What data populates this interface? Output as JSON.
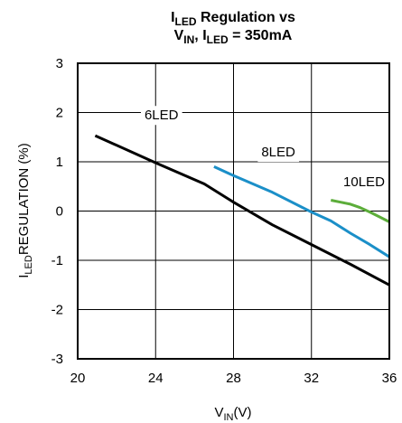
{
  "chart_data": {
    "type": "line",
    "title": {
      "line1": {
        "main": "I",
        "sub": "LED",
        "rest": " Regulation vs"
      },
      "line2": {
        "main1": "V",
        "sub1": "IN",
        "mid": ", I",
        "sub2": "LED",
        "rest": " = 350mA"
      }
    },
    "xlabel": {
      "main": "V",
      "sub": "IN",
      "rest": "(V)"
    },
    "ylabel": {
      "main": "I",
      "sub": "LED",
      "rest": "REGULATION (%)"
    },
    "xlim": [
      20,
      36
    ],
    "ylim": [
      -3,
      3
    ],
    "x_ticks": [
      20,
      24,
      28,
      32,
      36
    ],
    "y_ticks": [
      3,
      2,
      1,
      0,
      -1,
      -2,
      -3
    ],
    "grid": true,
    "series": [
      {
        "name": "6LED",
        "color": "#000000",
        "x": [
          20.9,
          24,
          26.5,
          28,
          30,
          32,
          34,
          36
        ],
        "y": [
          1.53,
          0.98,
          0.55,
          0.18,
          -0.28,
          -0.68,
          -1.08,
          -1.5
        ]
      },
      {
        "name": "8LED",
        "color": "#1b8fc8",
        "x": [
          27,
          28,
          30,
          32,
          33,
          34,
          35,
          36
        ],
        "y": [
          0.9,
          0.72,
          0.38,
          -0.02,
          -0.2,
          -0.45,
          -0.68,
          -0.93
        ]
      },
      {
        "name": "10LED",
        "color": "#5cad3a",
        "x": [
          33,
          33.5,
          34,
          34.5,
          35,
          35.5,
          36
        ],
        "y": [
          0.22,
          0.18,
          0.14,
          0.07,
          -0.02,
          -0.12,
          -0.22
        ]
      }
    ]
  }
}
